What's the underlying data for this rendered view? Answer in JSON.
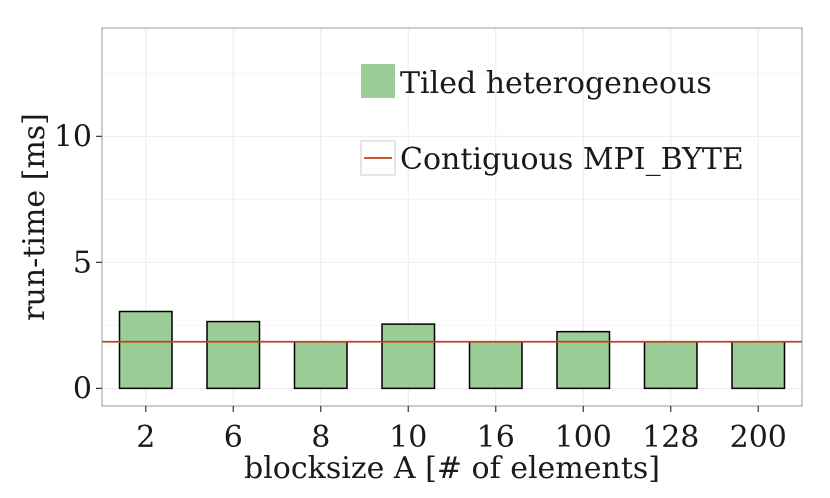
{
  "chart_data": {
    "type": "bar",
    "categories": [
      "2",
      "6",
      "8",
      "10",
      "16",
      "100",
      "128",
      "200"
    ],
    "series": [
      {
        "name": "Tiled heterogeneous",
        "values": [
          3.05,
          2.65,
          1.85,
          2.55,
          1.85,
          2.25,
          1.85,
          1.85
        ]
      }
    ],
    "reference_lines": [
      {
        "name": "Contiguous MPI_BYTE",
        "value": 1.85
      }
    ],
    "xlabel": "blocksize A [# of elements]",
    "ylabel": "run-time [ms]",
    "ylim": [
      -0.7,
      14.3
    ],
    "yticks": [
      0,
      5,
      10
    ],
    "grid": true,
    "legend_position": "top-right",
    "colors": {
      "bar_fill": "#9ccc96",
      "line": "#c0421a",
      "panel_border": "#999999"
    }
  }
}
